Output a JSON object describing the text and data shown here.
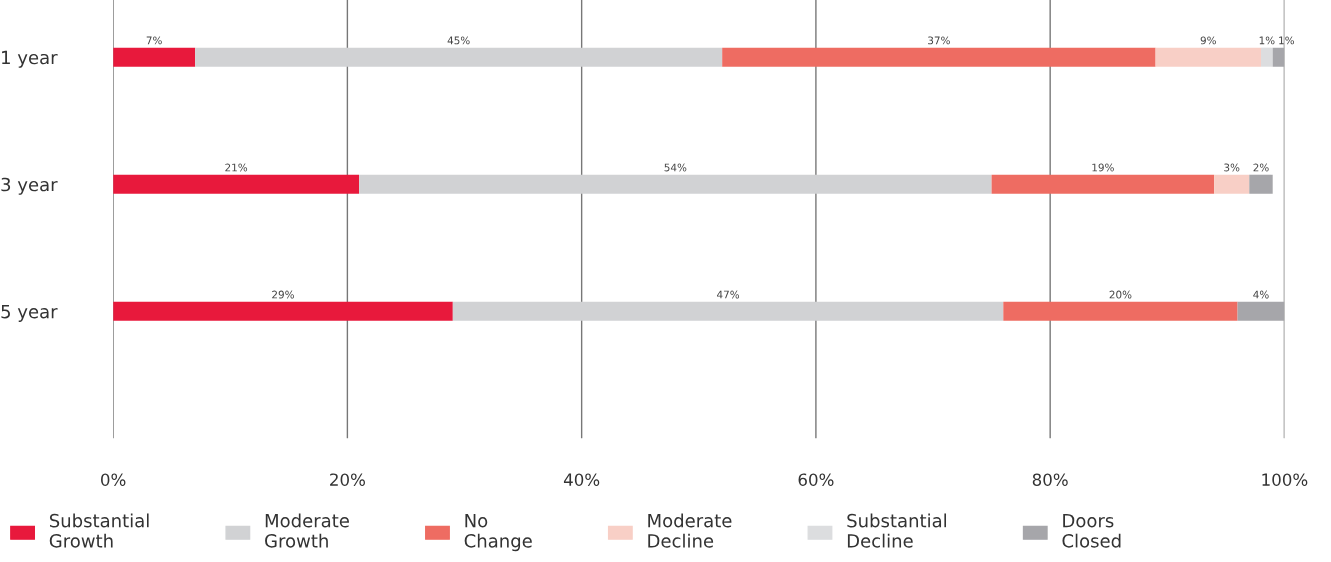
{
  "chart_data": {
    "type": "bar",
    "orientation": "horizontal",
    "stacked": true,
    "categories": [
      "1 year",
      "3 year",
      "5 year"
    ],
    "series": [
      {
        "name": "Substantial Growth",
        "color": "#e8193c",
        "values": [
          7,
          21,
          29
        ],
        "value_labels": [
          "7%",
          "21%",
          "29%"
        ]
      },
      {
        "name": "Moderate Growth",
        "color": "#d1d2d4",
        "values": [
          45,
          54,
          47
        ],
        "value_labels": [
          "45%",
          "54%",
          "47%"
        ]
      },
      {
        "name": "No Change",
        "color": "#ee6c62",
        "values": [
          37,
          19,
          20
        ],
        "value_labels": [
          "37%",
          "19%",
          "20%"
        ]
      },
      {
        "name": "Moderate Decline",
        "color": "#f8cfc6",
        "values": [
          9,
          3,
          null
        ],
        "value_labels": [
          "9%",
          "3%",
          null
        ]
      },
      {
        "name": "Substantial Decline",
        "color": "#dcdddf",
        "values": [
          1,
          null,
          null
        ],
        "value_labels": [
          "1%",
          null,
          null
        ]
      },
      {
        "name": "Doors Closed",
        "color": "#a6a6aa",
        "values": [
          1,
          2,
          4
        ],
        "value_labels": [
          "1%",
          "2%",
          "4%"
        ]
      }
    ],
    "xlim": [
      0,
      100
    ],
    "xticks": [
      {
        "value": 0,
        "label": "0%"
      },
      {
        "value": 20,
        "label": "20%"
      },
      {
        "value": 40,
        "label": "40%"
      },
      {
        "value": 60,
        "label": "60%"
      },
      {
        "value": 80,
        "label": "80%"
      },
      {
        "value": 100,
        "label": "100%"
      }
    ],
    "grid": "x",
    "legend": "bottom"
  }
}
